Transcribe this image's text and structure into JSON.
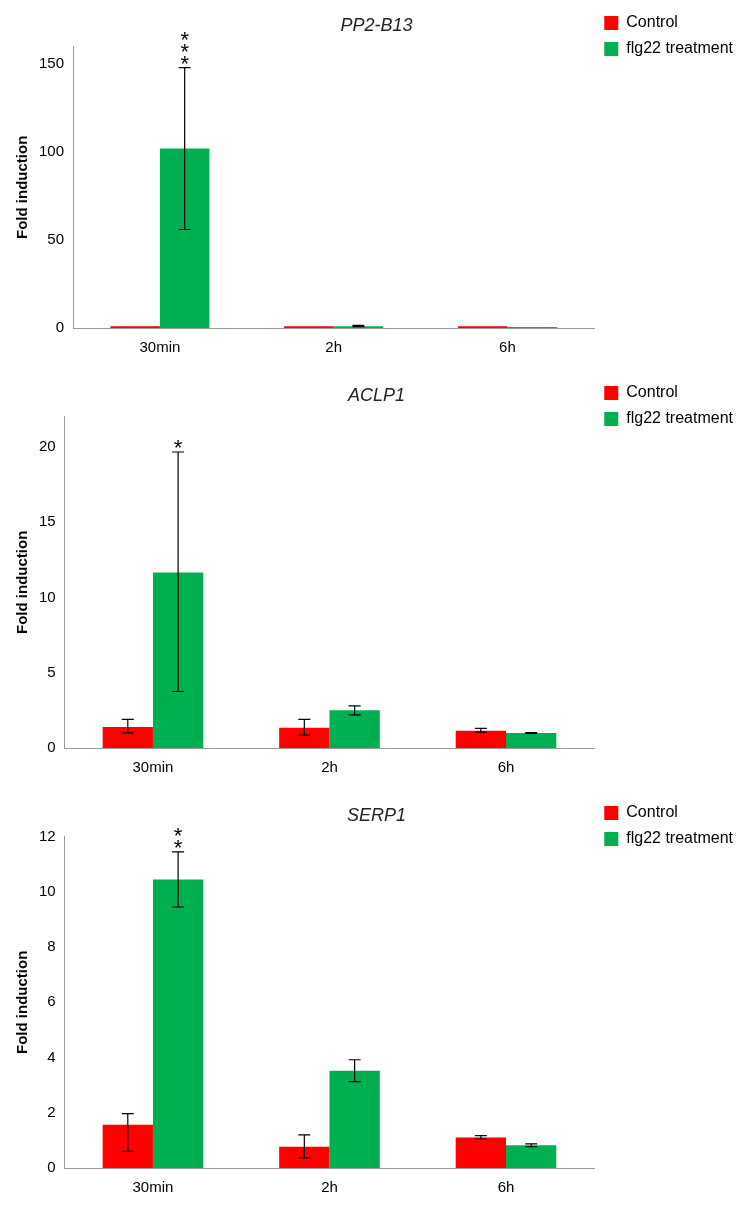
{
  "chart_data": [
    {
      "type": "bar",
      "title": "PP2-B13",
      "ylabel": "Fold induction",
      "categories": [
        "30min",
        "2h",
        "6h"
      ],
      "series": [
        {
          "name": "Control",
          "color": "#ff0000",
          "values": [
            1,
            1,
            1
          ]
        },
        {
          "name": "flg22 treatment",
          "color": "#00b050",
          "values": [
            102,
            1,
            0.5
          ],
          "errors": [
            [
              56,
              148
            ],
            [
              0.8,
              1.5
            ],
            null
          ]
        }
      ],
      "ylim": [
        0,
        160
      ],
      "yticks": [
        0,
        50,
        100,
        150
      ],
      "legend": "top right",
      "annotations": [
        "***"
      ]
    },
    {
      "type": "bar",
      "title": "ACLP1",
      "ylabel": "Fold induction",
      "categories": [
        "30min",
        "2h",
        "6h"
      ],
      "series": [
        {
          "name": "Control",
          "color": "#ff0000",
          "values": [
            1.4,
            1.35,
            1.15
          ],
          "errors": [
            [
              1.0,
              1.9
            ],
            [
              0.85,
              1.9
            ],
            [
              1.05,
              1.3
            ]
          ]
        },
        {
          "name": "flg22 treatment",
          "color": "#00b050",
          "values": [
            11.65,
            2.5,
            1.0
          ],
          "errors": [
            [
              3.75,
              19.65
            ],
            [
              2.2,
              2.8
            ],
            [
              0.97,
              1.03
            ]
          ]
        }
      ],
      "ylim": [
        0,
        22
      ],
      "yticks": [
        0,
        5,
        10,
        15,
        20
      ],
      "legend": "top right",
      "annotations": [
        "*"
      ]
    },
    {
      "type": "bar",
      "title": "SERP1",
      "ylabel": "Fold induction",
      "categories": [
        "30min",
        "2h",
        "6h"
      ],
      "series": [
        {
          "name": "Control",
          "color": "#ff0000",
          "values": [
            1.57,
            0.77,
            1.1
          ],
          "errors": [
            [
              0.6,
              1.97
            ],
            [
              0.37,
              1.2
            ],
            [
              1.05,
              1.17
            ]
          ]
        },
        {
          "name": "flg22 treatment",
          "color": "#00b050",
          "values": [
            10.45,
            3.52,
            0.82
          ],
          "errors": [
            [
              9.45,
              11.45
            ],
            [
              3.13,
              3.92
            ],
            [
              0.77,
              0.87
            ]
          ]
        }
      ],
      "ylim": [
        0,
        12
      ],
      "yticks": [
        0,
        2,
        4,
        6,
        8,
        10,
        12
      ],
      "legend": "top right",
      "annotations": [
        "**"
      ]
    }
  ]
}
